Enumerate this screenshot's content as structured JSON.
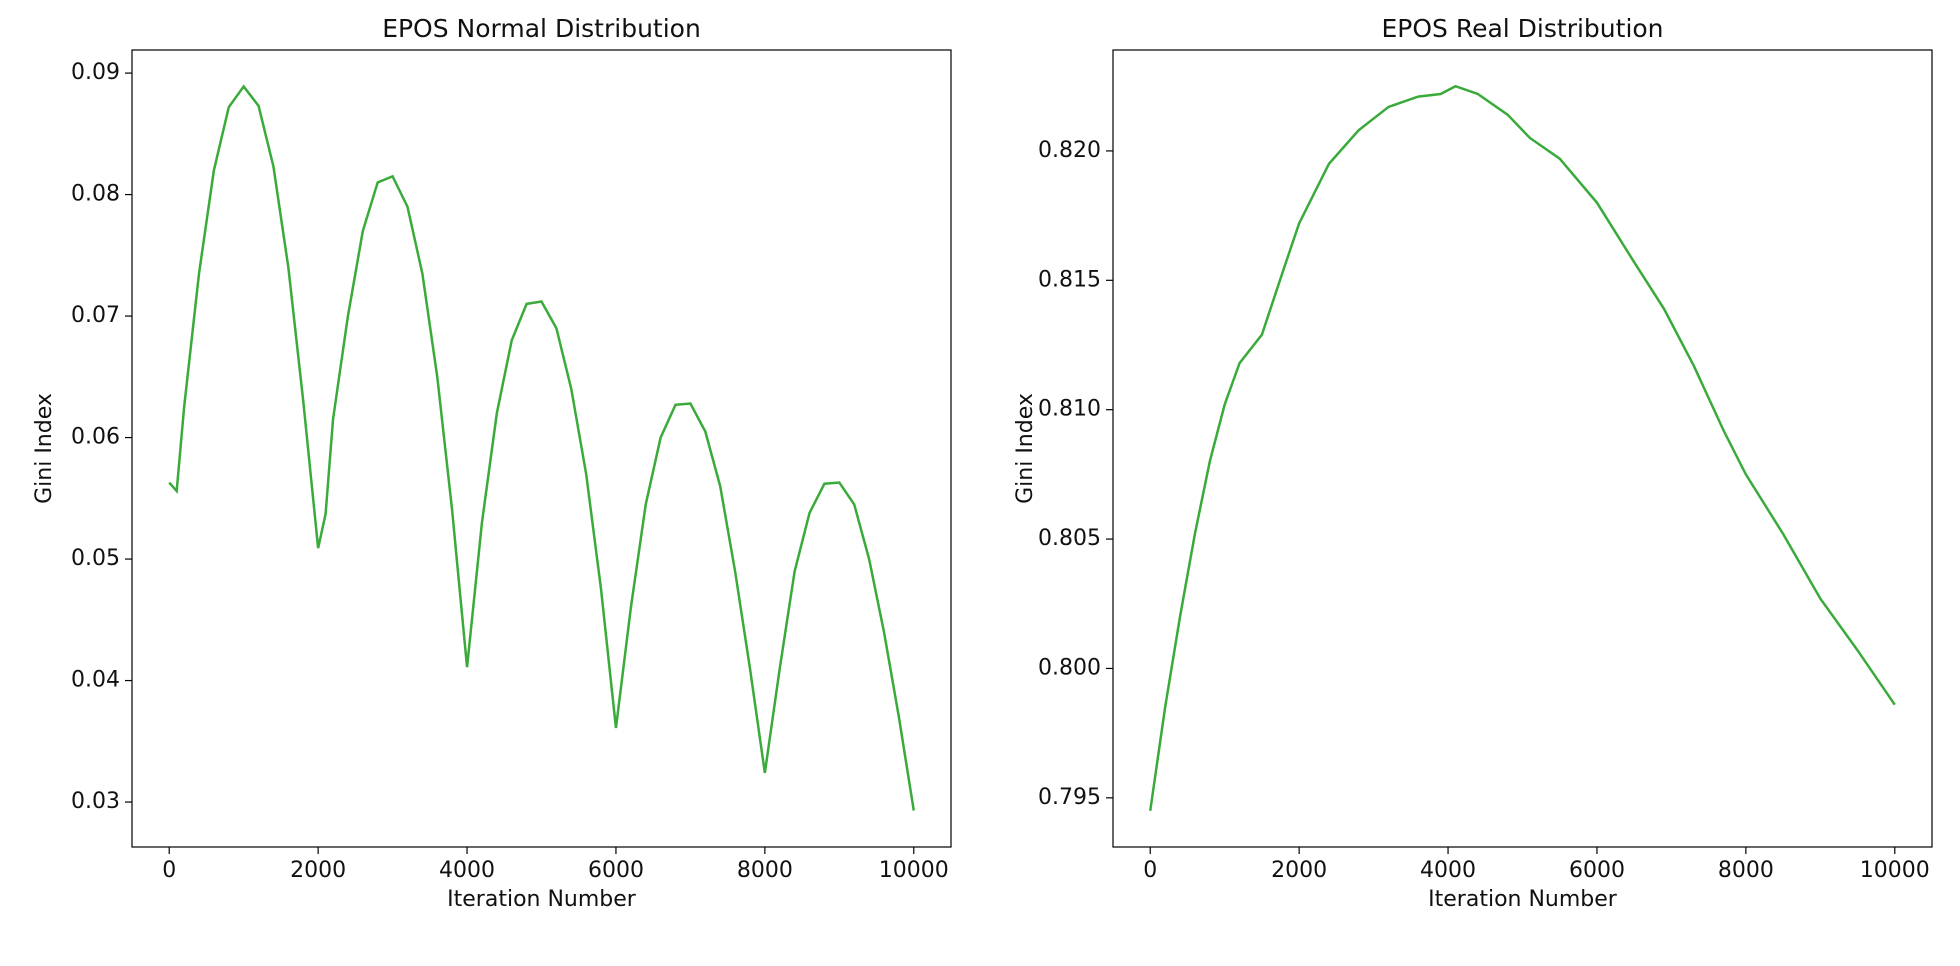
{
  "chart_data": [
    {
      "type": "line",
      "title": "EPOS Normal Distribution",
      "xlabel": "Iteration Number",
      "ylabel": "Gini Index",
      "x": [
        0,
        100,
        200,
        400,
        600,
        800,
        1000,
        1200,
        1400,
        1600,
        1800,
        2000,
        2100,
        2200,
        2400,
        2600,
        2800,
        3000,
        3200,
        3400,
        3600,
        3800,
        4000,
        4200,
        4400,
        4600,
        4800,
        5000,
        5200,
        5400,
        5600,
        5800,
        6000,
        6200,
        6400,
        6600,
        6800,
        7000,
        7200,
        7400,
        7600,
        7800,
        8000,
        8200,
        8400,
        8600,
        8800,
        9000,
        9200,
        9400,
        9600,
        9800,
        10000
      ],
      "series": [
        {
          "name": "Gini Index",
          "color": "#3aaa3a",
          "values": [
            0.0563,
            0.0556,
            0.0625,
            0.0735,
            0.082,
            0.0872,
            0.0889,
            0.0873,
            0.0823,
            0.074,
            0.063,
            0.0509,
            0.0537,
            0.0615,
            0.07,
            0.077,
            0.081,
            0.0815,
            0.079,
            0.0735,
            0.065,
            0.054,
            0.0411,
            0.053,
            0.062,
            0.068,
            0.071,
            0.0712,
            0.069,
            0.064,
            0.057,
            0.0475,
            0.0361,
            0.046,
            0.0545,
            0.06,
            0.0627,
            0.0628,
            0.0605,
            0.056,
            0.049,
            0.041,
            0.0324,
            0.041,
            0.049,
            0.0538,
            0.0562,
            0.0563,
            0.0545,
            0.05,
            0.044,
            0.037,
            0.0293
          ]
        }
      ],
      "xlim": [
        -500,
        10500
      ],
      "xticks": [
        0,
        2000,
        4000,
        6000,
        8000,
        10000
      ],
      "ylim": [
        0.0263,
        0.0919
      ],
      "yticks": [
        0.03,
        0.04,
        0.05,
        0.06,
        0.07,
        0.08,
        0.09
      ]
    },
    {
      "type": "line",
      "title": "EPOS Real Distribution",
      "xlabel": "Iteration Number",
      "ylabel": "Gini Index",
      "x": [
        0,
        200,
        400,
        600,
        800,
        1000,
        1200,
        1500,
        1800,
        2000,
        2400,
        2800,
        3200,
        3600,
        3900,
        4100,
        4400,
        4800,
        5100,
        5500,
        6000,
        6500,
        6900,
        7300,
        7700,
        8000,
        8500,
        9000,
        9500,
        10000
      ],
      "series": [
        {
          "name": "Gini Index",
          "color": "#3aaa3a",
          "values": [
            0.7945,
            0.7985,
            0.802,
            0.8052,
            0.808,
            0.8102,
            0.8118,
            0.8129,
            0.8155,
            0.8172,
            0.8195,
            0.8208,
            0.8217,
            0.8221,
            0.8222,
            0.8225,
            0.8222,
            0.8214,
            0.8205,
            0.8197,
            0.818,
            0.8157,
            0.8139,
            0.8117,
            0.8092,
            0.8075,
            0.8052,
            0.8027,
            0.8007,
            0.7986
          ]
        }
      ],
      "xlim": [
        -500,
        10500
      ],
      "xticks": [
        0,
        2000,
        4000,
        6000,
        8000,
        10000
      ],
      "ylim": [
        0.7931,
        0.8239
      ],
      "yticks": [
        0.795,
        {
          "value": 0.8,
          "label": "0.800"
        },
        0.805,
        {
          "value": 0.81,
          "label": "0.810"
        },
        0.815,
        {
          "value": 0.82,
          "label": "0.820"
        }
      ]
    }
  ]
}
